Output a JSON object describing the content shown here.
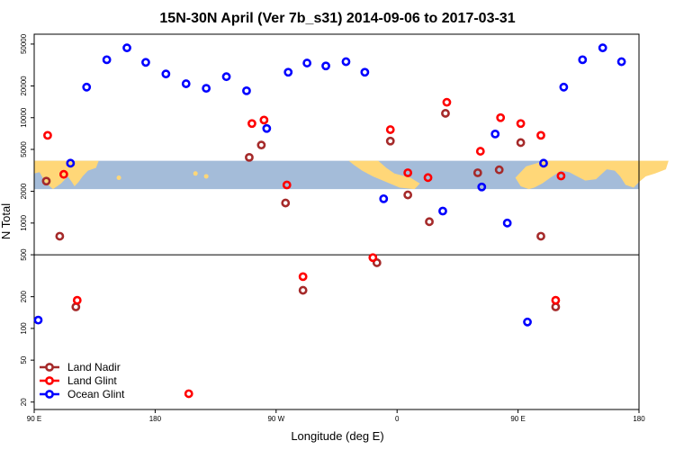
{
  "chart_data": {
    "type": "scatter",
    "title": "15N-30N April (Ver 7b_s31)   2014-09-06 to 2017-03-31",
    "xlabel": "Longitude (deg E)",
    "ylabel": "N Total",
    "x_ticks": [
      {
        "value": 90,
        "label": "90 E"
      },
      {
        "value": 180,
        "label": "180"
      },
      {
        "value": 270,
        "label": "90 W"
      },
      {
        "value": 360,
        "label": "0"
      },
      {
        "value": 450,
        "label": "90 E"
      },
      {
        "value": 540,
        "label": "180"
      }
    ],
    "xlim": [
      90,
      540
    ],
    "y_scale": "log",
    "ylim": [
      17,
      62000
    ],
    "y_ticks": [
      20,
      50,
      100,
      200,
      500,
      1000,
      2000,
      5000,
      10000,
      20000,
      50000
    ],
    "reference_line_y": 500,
    "map_strip_band": [
      2100,
      3900
    ],
    "legend_position": "bottom-left",
    "series": [
      {
        "name": "Land Nadir",
        "color": "#a52a2a",
        "points": [
          [
            99,
            2500
          ],
          [
            109,
            750
          ],
          [
            121,
            160
          ],
          [
            250,
            4200
          ],
          [
            259,
            5500
          ],
          [
            277,
            1550
          ],
          [
            290,
            230
          ],
          [
            345,
            420
          ],
          [
            355,
            6000
          ],
          [
            368,
            1850
          ],
          [
            384,
            1030
          ],
          [
            396,
            11000
          ],
          [
            420,
            3000
          ],
          [
            436,
            3200
          ],
          [
            452,
            5800
          ],
          [
            467,
            750
          ],
          [
            478,
            160
          ]
        ]
      },
      {
        "name": "Land Glint",
        "color": "#ff0000",
        "points": [
          [
            100,
            6800
          ],
          [
            112,
            2900
          ],
          [
            122,
            185
          ],
          [
            205,
            24
          ],
          [
            252,
            8800
          ],
          [
            261,
            9500
          ],
          [
            278,
            2300
          ],
          [
            290,
            310
          ],
          [
            342,
            470
          ],
          [
            355,
            7700
          ],
          [
            368,
            3000
          ],
          [
            383,
            2700
          ],
          [
            397,
            14000
          ],
          [
            422,
            4800
          ],
          [
            437,
            10000
          ],
          [
            452,
            8800
          ],
          [
            467,
            6800
          ],
          [
            478,
            185
          ],
          [
            482,
            2800
          ]
        ]
      },
      {
        "name": "Ocean Glint",
        "color": "#0000ff",
        "points": [
          [
            93,
            120
          ],
          [
            117,
            3700
          ],
          [
            129,
            19500
          ],
          [
            144,
            35500
          ],
          [
            159,
            46000
          ],
          [
            173,
            33500
          ],
          [
            188,
            26000
          ],
          [
            203,
            21000
          ],
          [
            218,
            19000
          ],
          [
            233,
            24500
          ],
          [
            248,
            18000
          ],
          [
            263,
            7900
          ],
          [
            279,
            27000
          ],
          [
            293,
            33000
          ],
          [
            307,
            31000
          ],
          [
            322,
            34000
          ],
          [
            336,
            27000
          ],
          [
            350,
            1700
          ],
          [
            394,
            1300
          ],
          [
            423,
            2200
          ],
          [
            433,
            7000
          ],
          [
            442,
            1000
          ],
          [
            457,
            115
          ],
          [
            469,
            3700
          ],
          [
            484,
            19500
          ],
          [
            498,
            35500
          ],
          [
            513,
            46000
          ],
          [
            527,
            34000
          ]
        ]
      }
    ]
  }
}
